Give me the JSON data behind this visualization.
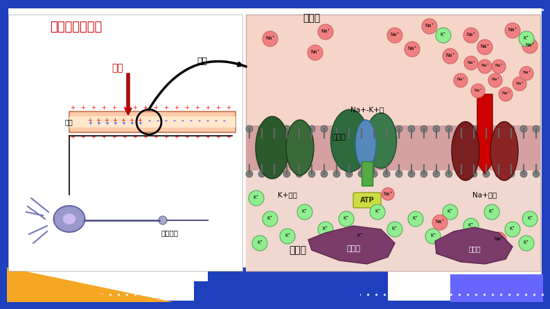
{
  "title": "动作电位的形成",
  "title_bg": "#FFFF00",
  "title_color": "#CC0000",
  "slide_bg": "#FFFFFF",
  "border_color": "#1E3FBE",
  "bottom_bar_color1": "#F5A623",
  "bottom_bar_color2": "#1E3FBE",
  "bottom_bar_color3": "#6666FF",
  "cell_outside_label": "细胞外",
  "cell_inside_label": "细胞内",
  "cell_membrane_label": "细胞膜",
  "na_k_pump_label": "Na+-K+泵",
  "k_channel_label": "K+通道",
  "na_channel_label": "Na+通道",
  "atp_label": "ATP",
  "protein_label": "蛋白质",
  "stimulus_label": "刺激",
  "magnify_label": "放大",
  "membrane_label": "质膜",
  "nerve_label": "神经纤维",
  "right_panel_bg": "#F5D5C8",
  "right_panel_membrane_bg": "#E8C4B8",
  "left_panel_bg": "#FFFFFF",
  "na_color": "#F08080",
  "k_color": "#90EE90",
  "na_text_color": "#000000",
  "k_text_color": "#000000"
}
